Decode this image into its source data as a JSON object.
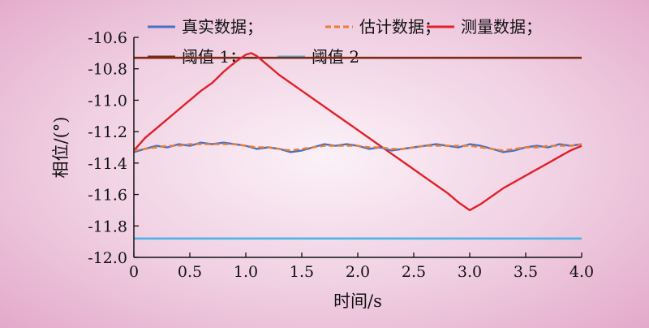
{
  "chart_data": {
    "type": "line",
    "xlabel": "时间/s",
    "ylabel": "相位/(°)",
    "xlim": [
      0,
      4
    ],
    "ylim": [
      -12.0,
      -10.6
    ],
    "xticks": [
      "0",
      "0.5",
      "1.0",
      "1.5",
      "2.0",
      "2.5",
      "3.0",
      "3.5",
      "4.0"
    ],
    "yticks": [
      "-10.6",
      "-10.8",
      "-11.0",
      "-11.2",
      "-11.4",
      "-11.6",
      "-11.8",
      "-12.0"
    ],
    "grid": false,
    "legend_position": "top",
    "series": [
      {
        "name": "真实数据；",
        "color": "#4472c4",
        "style": "solid",
        "x": [
          0,
          0.1,
          0.2,
          0.3,
          0.4,
          0.5,
          0.6,
          0.7,
          0.8,
          0.9,
          1.0,
          1.1,
          1.2,
          1.3,
          1.4,
          1.5,
          1.6,
          1.7,
          1.8,
          1.9,
          2.0,
          2.1,
          2.2,
          2.3,
          2.4,
          2.5,
          2.6,
          2.7,
          2.8,
          2.9,
          3.0,
          3.1,
          3.2,
          3.3,
          3.4,
          3.5,
          3.6,
          3.7,
          3.8,
          3.9,
          4.0
        ],
        "values": [
          -11.33,
          -11.31,
          -11.29,
          -11.3,
          -11.28,
          -11.29,
          -11.27,
          -11.28,
          -11.27,
          -11.28,
          -11.29,
          -11.31,
          -11.3,
          -11.31,
          -11.33,
          -11.32,
          -11.3,
          -11.28,
          -11.29,
          -11.28,
          -11.29,
          -11.31,
          -11.3,
          -11.32,
          -11.31,
          -11.3,
          -11.29,
          -11.28,
          -11.29,
          -11.3,
          -11.28,
          -11.29,
          -11.31,
          -11.33,
          -11.32,
          -11.3,
          -11.29,
          -11.3,
          -11.28,
          -11.29,
          -11.28
        ]
      },
      {
        "name": "估计数据；",
        "color": "#ed7d31",
        "style": "dashed",
        "x": [
          0,
          0.1,
          0.2,
          0.3,
          0.4,
          0.5,
          0.6,
          0.7,
          0.8,
          0.9,
          1.0,
          1.1,
          1.2,
          1.3,
          1.4,
          1.5,
          1.6,
          1.7,
          1.8,
          1.9,
          2.0,
          2.1,
          2.2,
          2.3,
          2.4,
          2.5,
          2.6,
          2.7,
          2.8,
          2.9,
          3.0,
          3.1,
          3.2,
          3.3,
          3.4,
          3.5,
          3.6,
          3.7,
          3.8,
          3.9,
          4.0
        ],
        "values": [
          -11.32,
          -11.31,
          -11.3,
          -11.29,
          -11.29,
          -11.28,
          -11.28,
          -11.28,
          -11.28,
          -11.28,
          -11.29,
          -11.3,
          -11.3,
          -11.31,
          -11.32,
          -11.31,
          -11.3,
          -11.29,
          -11.29,
          -11.29,
          -11.29,
          -11.3,
          -11.3,
          -11.31,
          -11.31,
          -11.3,
          -11.29,
          -11.29,
          -11.29,
          -11.29,
          -11.29,
          -11.3,
          -11.31,
          -11.32,
          -11.31,
          -11.3,
          -11.3,
          -11.29,
          -11.29,
          -11.29,
          -11.28
        ]
      },
      {
        "name": "测量数据；",
        "color": "#e0202a",
        "style": "solid",
        "x": [
          0,
          0.1,
          0.2,
          0.3,
          0.4,
          0.5,
          0.6,
          0.7,
          0.8,
          0.9,
          1.0,
          1.05,
          1.1,
          1.2,
          1.3,
          1.4,
          1.5,
          1.6,
          1.7,
          1.8,
          1.9,
          2.0,
          2.1,
          2.2,
          2.3,
          2.4,
          2.5,
          2.6,
          2.7,
          2.8,
          2.9,
          3.0,
          3.1,
          3.2,
          3.3,
          3.4,
          3.5,
          3.6,
          3.7,
          3.8,
          3.9,
          4.0
        ],
        "values": [
          -11.32,
          -11.24,
          -11.18,
          -11.12,
          -11.06,
          -11.0,
          -10.94,
          -10.89,
          -10.82,
          -10.76,
          -10.71,
          -10.7,
          -10.72,
          -10.78,
          -10.84,
          -10.89,
          -10.94,
          -10.99,
          -11.04,
          -11.09,
          -11.14,
          -11.19,
          -11.24,
          -11.29,
          -11.34,
          -11.39,
          -11.44,
          -11.49,
          -11.54,
          -11.59,
          -11.65,
          -11.7,
          -11.66,
          -11.61,
          -11.56,
          -11.52,
          -11.48,
          -11.44,
          -11.4,
          -11.36,
          -11.32,
          -11.29
        ]
      },
      {
        "name": "阈值 1；",
        "color": "#7b2a14",
        "style": "solid",
        "x": [
          0,
          4
        ],
        "values": [
          -10.73,
          -10.73
        ]
      },
      {
        "name": "阈值 2",
        "color": "#4fb3e8",
        "style": "solid",
        "x": [
          0,
          4
        ],
        "values": [
          -11.88,
          -11.88
        ]
      }
    ]
  }
}
